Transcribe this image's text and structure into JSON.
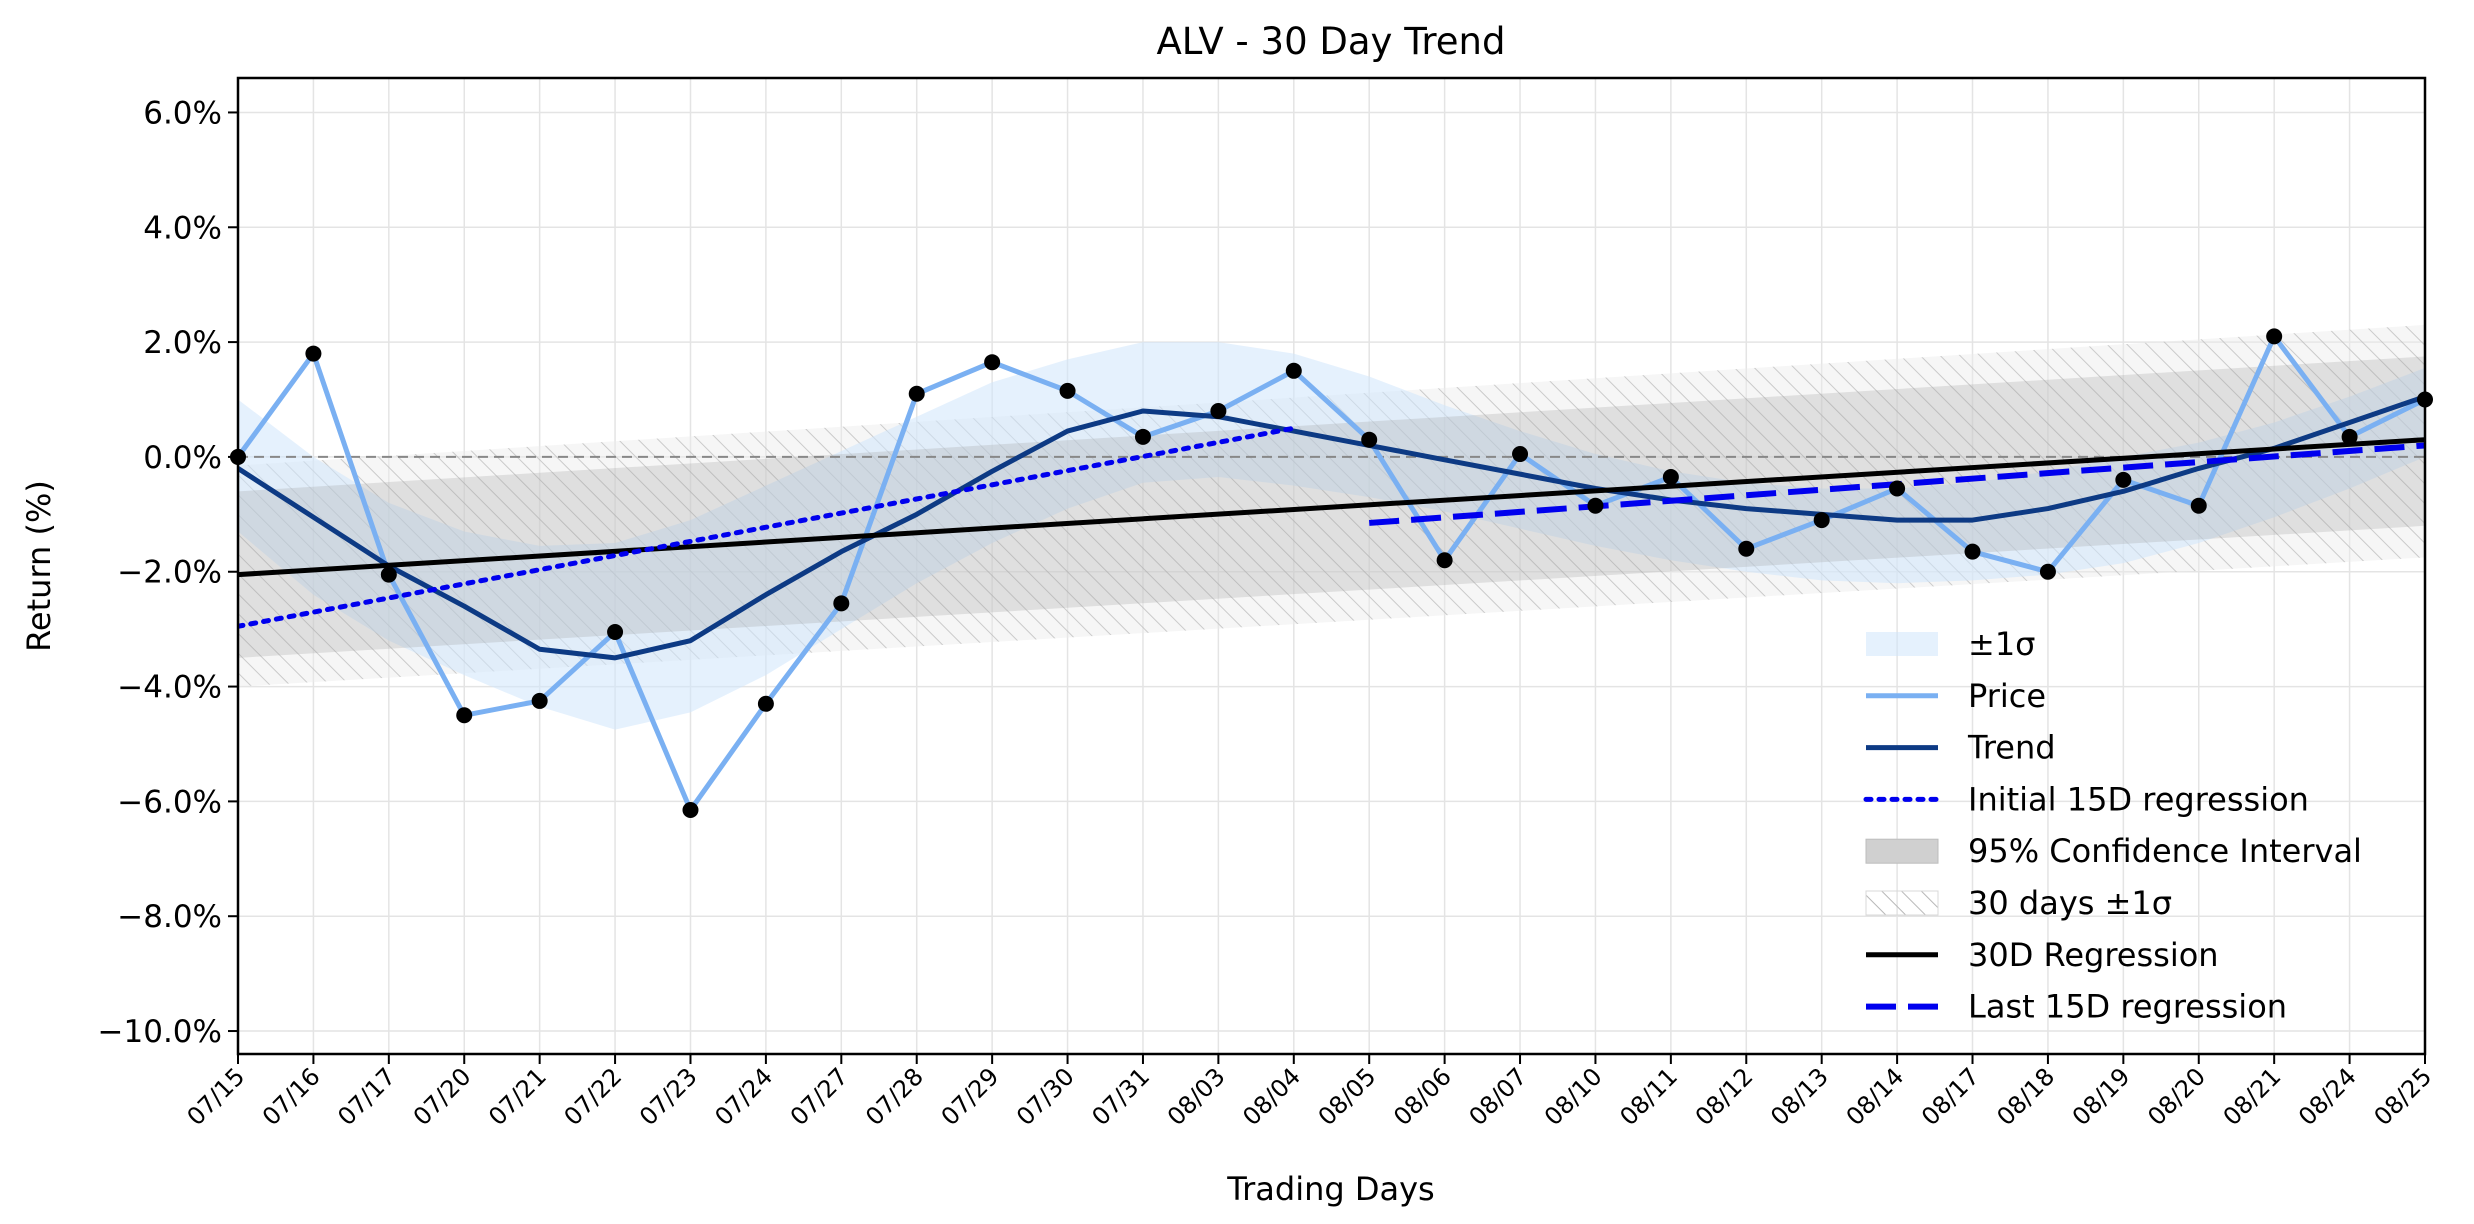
{
  "chart_data": {
    "type": "line",
    "title": "ALV - 30 Day Trend",
    "xlabel": "Trading Days",
    "ylabel": "Return (%)",
    "ylim": [
      -10.4,
      6.6
    ],
    "yticks": [
      6.0,
      4.0,
      2.0,
      0.0,
      -2.0,
      -4.0,
      -6.0,
      -8.0,
      -10.0
    ],
    "ytick_labels": [
      "6.0%",
      "4.0%",
      "2.0%",
      "0.0%",
      "−2.0%",
      "−4.0%",
      "−6.0%",
      "−8.0%",
      "−10.0%"
    ],
    "grid": true,
    "legend_position": "lower-right",
    "categories": [
      "07/15",
      "07/16",
      "07/17",
      "07/20",
      "07/21",
      "07/22",
      "07/23",
      "07/24",
      "07/27",
      "07/28",
      "07/29",
      "07/30",
      "07/31",
      "08/03",
      "08/04",
      "08/05",
      "08/06",
      "08/07",
      "08/10",
      "08/11",
      "08/12",
      "08/13",
      "08/14",
      "08/17",
      "08/18",
      "08/19",
      "08/20",
      "08/21",
      "08/24",
      "08/25"
    ],
    "zero_line": 0.0,
    "series": [
      {
        "name": "Price",
        "kind": "line",
        "color": "#7ab0f2",
        "values": [
          0.0,
          1.8,
          -2.05,
          -4.5,
          -4.25,
          -3.05,
          -6.15,
          -4.3,
          -2.55,
          1.1,
          1.65,
          1.15,
          0.35,
          0.8,
          1.5,
          0.3,
          -1.8,
          0.05,
          -0.85,
          -0.35,
          -1.6,
          -1.1,
          -0.55,
          -1.65,
          -2.0,
          -0.4,
          -0.85,
          2.1,
          0.35,
          1.0
        ]
      },
      {
        "name": "Trend",
        "kind": "line",
        "color": "#0d3a84",
        "values": [
          -0.2,
          -1.05,
          -1.9,
          -2.6,
          -3.35,
          -3.5,
          -3.2,
          -2.4,
          -1.65,
          -1.0,
          -0.25,
          0.45,
          0.8,
          0.7,
          0.45,
          0.2,
          -0.05,
          -0.3,
          -0.55,
          -0.75,
          -0.9,
          -1.0,
          -1.1,
          -1.1,
          -0.9,
          -0.6,
          -0.2,
          0.15,
          0.6,
          1.05
        ]
      },
      {
        "name": "30D Regression",
        "kind": "line",
        "color": "#000000",
        "x_range": [
          0,
          29
        ],
        "y_range": [
          -2.05,
          0.3
        ]
      },
      {
        "name": "Initial 15D regression",
        "kind": "dotted",
        "color": "#0000ee",
        "x_range": [
          0,
          14
        ],
        "y_range": [
          -2.95,
          0.5
        ]
      },
      {
        "name": "Last 15D regression",
        "kind": "dashed",
        "color": "#0000ee",
        "x_range": [
          15,
          29
        ],
        "y_range": [
          -1.15,
          0.2
        ]
      }
    ],
    "bands": [
      {
        "name": "±1σ",
        "color": "#cfe5fb",
        "upper": [
          1.0,
          0.0,
          -0.8,
          -1.3,
          -1.55,
          -1.5,
          -1.1,
          -0.5,
          0.1,
          0.7,
          1.3,
          1.7,
          2.0,
          2.0,
          1.8,
          1.4,
          0.9,
          0.45,
          0.05,
          -0.25,
          -0.45,
          -0.55,
          -0.55,
          -0.45,
          -0.25,
          0.0,
          0.25,
          0.6,
          1.05,
          1.55
        ],
        "lower": [
          -1.3,
          -2.4,
          -3.2,
          -3.8,
          -4.35,
          -4.75,
          -4.45,
          -3.8,
          -3.0,
          -2.2,
          -1.5,
          -0.9,
          -0.45,
          -0.35,
          -0.5,
          -0.7,
          -0.95,
          -1.25,
          -1.55,
          -1.8,
          -2.0,
          -2.15,
          -2.2,
          -2.15,
          -2.05,
          -1.85,
          -1.5,
          -1.05,
          -0.55,
          0.0
        ]
      },
      {
        "name": "95% Confidence Interval",
        "color": "#9a9a9a",
        "upper_range": [
          -0.6,
          1.75
        ],
        "lower_range": [
          -3.5,
          -1.2
        ]
      },
      {
        "name": "30 days ±1σ",
        "color": "#cfcfcf",
        "upper_range": [
          -0.15,
          2.3
        ],
        "lower_range": [
          -4.0,
          -1.75
        ]
      }
    ],
    "legend": [
      "±1σ",
      "Price",
      "Trend",
      "Initial 15D regression",
      "95% Confidence Interval",
      "30 days ±1σ",
      "30D Regression",
      "Last 15D regression"
    ]
  }
}
